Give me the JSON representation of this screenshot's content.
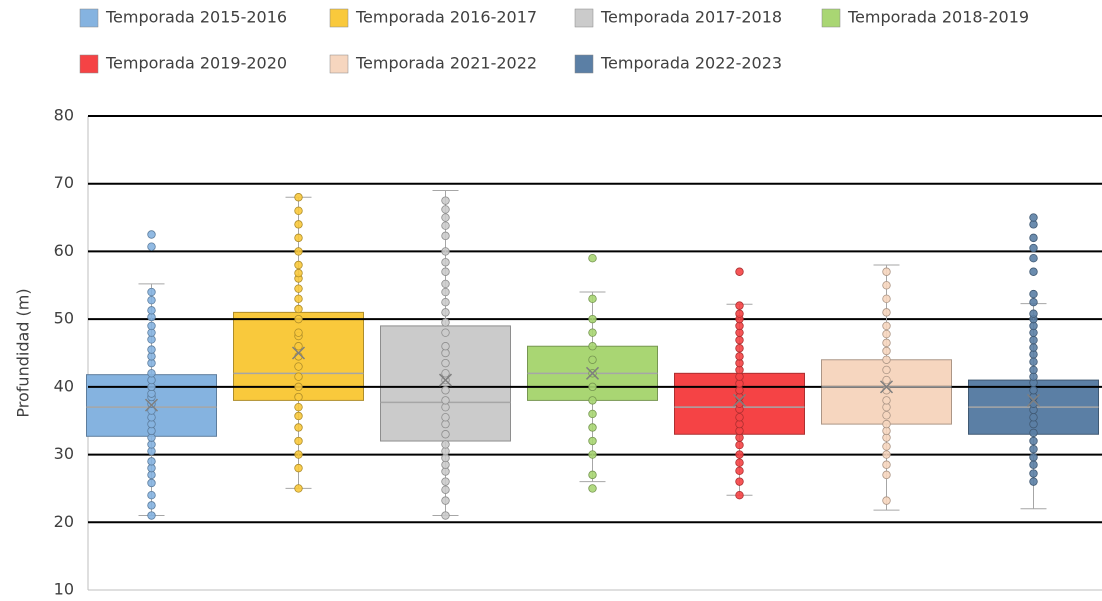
{
  "chart_data": {
    "type": "box",
    "ylabel": "Profundidad (m)",
    "ylim": [
      10,
      80
    ],
    "yticks": [
      10,
      20,
      30,
      40,
      50,
      60,
      70,
      80
    ],
    "grid": true,
    "series": [
      {
        "name": "Temporada 2015-2016",
        "color": "#85b3e0",
        "whisker_low": 21,
        "q1": 32.7,
        "median": 37,
        "q3": 41.8,
        "whisker_high": 55.2,
        "mean": 37.3,
        "points": [
          21,
          22.5,
          24,
          25.8,
          27,
          28,
          29,
          30.5,
          31.5,
          32.5,
          33.5,
          34.5,
          35.5,
          36.5,
          37.5,
          38.5,
          39,
          40,
          41,
          42,
          43.5,
          44.5,
          45.5,
          47,
          48,
          49,
          50.3,
          51.3,
          52.8,
          54,
          60.7,
          62.5
        ]
      },
      {
        "name": "Temporada 2016-2017",
        "color": "#f9c93c",
        "whisker_low": 25,
        "q1": 38,
        "median": 42,
        "q3": 51,
        "whisker_high": 68,
        "mean": 45,
        "points": [
          25,
          28,
          30,
          32,
          34,
          35.7,
          37,
          38.5,
          40,
          41.5,
          43,
          44.5,
          46,
          47.5,
          48,
          50,
          51.5,
          53,
          54.5,
          56,
          56.8,
          58,
          60,
          62,
          64,
          66,
          68
        ]
      },
      {
        "name": "Temporada 2017-2018",
        "color": "#cbcbcb",
        "whisker_low": 21,
        "q1": 32,
        "median": 37.7,
        "q3": 49,
        "whisker_high": 69,
        "mean": 41,
        "points": [
          21,
          23.2,
          24.8,
          26,
          27.5,
          28.5,
          29.5,
          30.5,
          31.5,
          33,
          34.5,
          35.5,
          37,
          38,
          39.5,
          41,
          42,
          43.5,
          45,
          46,
          48,
          49.5,
          51,
          52.5,
          54,
          55.2,
          57,
          58.4,
          60,
          62.3,
          63.8,
          65,
          66.2,
          67.5
        ]
      },
      {
        "name": "Temporada 2018-2019",
        "color": "#a9d673",
        "whisker_low": 26,
        "q1": 38,
        "median": 42,
        "q3": 46,
        "whisker_high": 54,
        "mean": 42,
        "points": [
          25,
          27,
          30,
          32,
          34,
          36,
          38,
          40,
          42,
          44,
          46,
          48,
          50,
          53,
          59
        ]
      },
      {
        "name": "Temporada 2019-2020",
        "color": "#f54345",
        "whisker_low": 24,
        "q1": 33,
        "median": 37,
        "q3": 42,
        "whisker_high": 52.2,
        "mean": 38,
        "points": [
          24,
          26,
          27.6,
          28.8,
          30,
          31.4,
          32.5,
          33.5,
          34.5,
          35.5,
          36.7,
          37.5,
          38.5,
          39.5,
          40.5,
          41.5,
          42.5,
          43.5,
          44.5,
          45.7,
          46.9,
          48,
          49,
          50,
          50.8,
          52,
          57
        ]
      },
      {
        "name": "Temporada 2021-2022",
        "color": "#f6d6bf",
        "whisker_low": 21.8,
        "q1": 34.5,
        "median": 40,
        "q3": 44,
        "whisker_high": 58,
        "mean": 40,
        "points": [
          23.2,
          27,
          28.5,
          30,
          31.2,
          32.5,
          33.5,
          34.5,
          35.8,
          37,
          38,
          39.5,
          41,
          42.5,
          44,
          45.3,
          46.5,
          47.8,
          49,
          51,
          53,
          55,
          57
        ]
      },
      {
        "name": "Temporada 2022-2023",
        "color": "#5b7fa5",
        "whisker_low": 22,
        "q1": 33,
        "median": 37,
        "q3": 41,
        "whisker_high": 52.3,
        "mean": 38,
        "points": [
          26,
          27.2,
          28.5,
          29.6,
          30.8,
          32,
          33.2,
          34.5,
          35.5,
          36.6,
          37.5,
          38.5,
          39.5,
          40.6,
          41.5,
          42.5,
          43.7,
          44.8,
          45.8,
          46.9,
          48,
          49,
          50,
          50.8,
          52.5,
          53.7,
          57,
          59,
          60.5,
          62,
          64,
          65
        ]
      }
    ]
  }
}
